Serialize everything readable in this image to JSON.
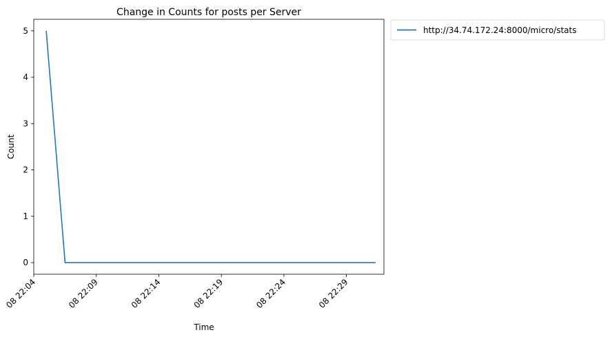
{
  "chart_data": {
    "type": "line",
    "title": "Change in Counts for posts per Server",
    "xlabel": "Time",
    "ylabel": "Count",
    "x_ticks": [
      "08 22:04",
      "08 22:09",
      "08 22:14",
      "08 22:19",
      "08 22:24",
      "08 22:29"
    ],
    "y_ticks": [
      "0",
      "1",
      "2",
      "3",
      "4",
      "5"
    ],
    "xlim": [
      "22:04:00",
      "22:32:00"
    ],
    "ylim": [
      -0.25,
      5.25
    ],
    "grid": false,
    "legend_position": "outside-top-right",
    "series": [
      {
        "name": "http://34.74.172.24:8000/micro/stats",
        "color": "#1f77b4",
        "x": [
          "22:05:00",
          "22:06:30",
          "22:31:20"
        ],
        "y": [
          5,
          0,
          0
        ]
      }
    ]
  }
}
